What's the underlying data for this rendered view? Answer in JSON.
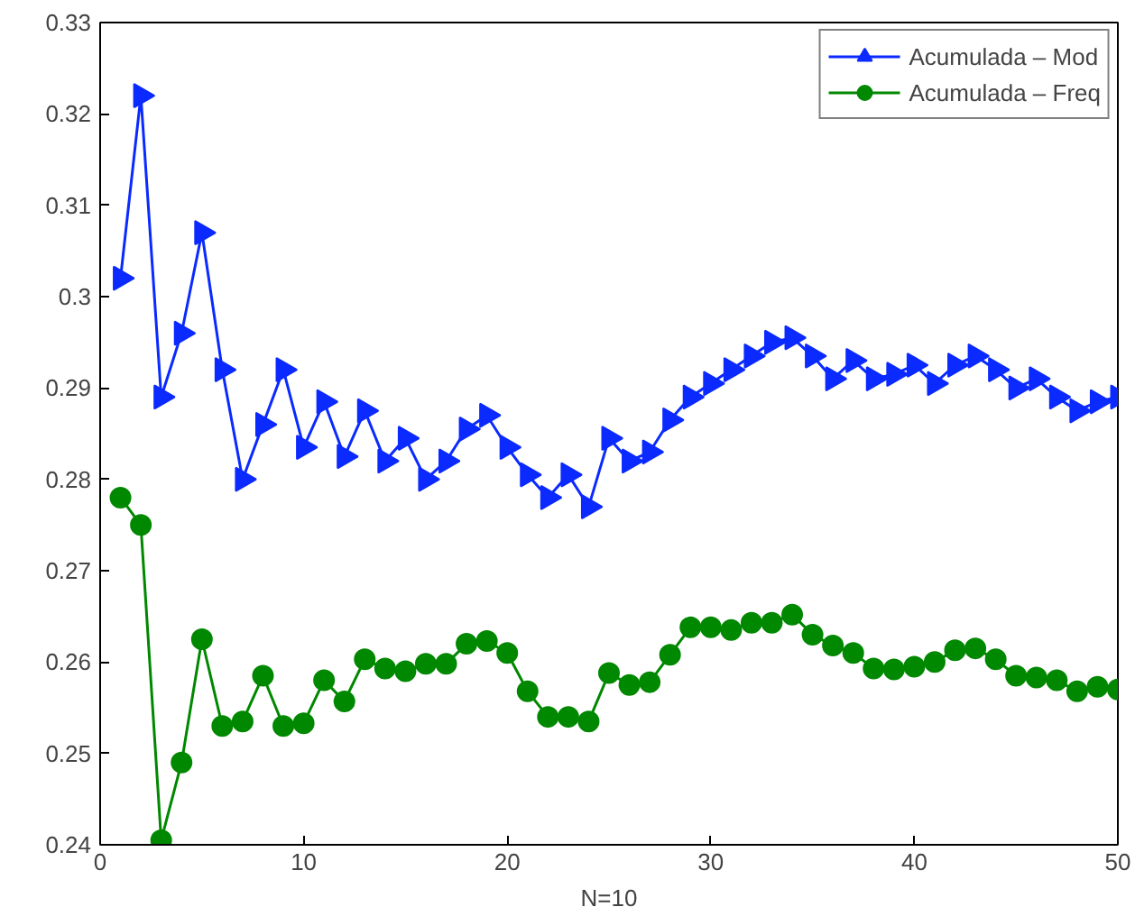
{
  "chart_data": {
    "type": "line",
    "xlabel": "N=10",
    "x": [
      1,
      2,
      3,
      4,
      5,
      6,
      7,
      8,
      9,
      10,
      11,
      12,
      13,
      14,
      15,
      16,
      17,
      18,
      19,
      20,
      21,
      22,
      23,
      24,
      25,
      26,
      27,
      28,
      29,
      30,
      31,
      32,
      33,
      34,
      35,
      36,
      37,
      38,
      39,
      40,
      41,
      42,
      43,
      44,
      45,
      46,
      47,
      48,
      49,
      50
    ],
    "series": [
      {
        "name": "Acumulada – Mod",
        "color": "#0a2aff",
        "marker": "triangle",
        "values": [
          0.302,
          0.322,
          0.289,
          0.296,
          0.307,
          0.292,
          0.28,
          0.286,
          0.292,
          0.2835,
          0.2885,
          0.2825,
          0.2875,
          0.282,
          0.2845,
          0.28,
          0.282,
          0.2855,
          0.287,
          0.2835,
          0.2805,
          0.278,
          0.2805,
          0.277,
          0.2845,
          0.282,
          0.283,
          0.2865,
          0.289,
          0.2905,
          0.292,
          0.2935,
          0.295,
          0.2955,
          0.2935,
          0.291,
          0.293,
          0.291,
          0.2915,
          0.2925,
          0.2905,
          0.2925,
          0.2935,
          0.292,
          0.29,
          0.291,
          0.289,
          0.2875,
          0.2885,
          0.289
        ]
      },
      {
        "name": "Acumulada – Freq",
        "color": "#008800",
        "marker": "circle",
        "values": [
          0.278,
          0.275,
          0.2405,
          0.249,
          0.2625,
          0.253,
          0.2535,
          0.2585,
          0.253,
          0.2533,
          0.258,
          0.2557,
          0.2603,
          0.2593,
          0.259,
          0.2598,
          0.2598,
          0.262,
          0.2623,
          0.261,
          0.2568,
          0.254,
          0.254,
          0.2535,
          0.2588,
          0.2575,
          0.2578,
          0.2608,
          0.2638,
          0.2638,
          0.2635,
          0.2643,
          0.2643,
          0.2652,
          0.263,
          0.2618,
          0.261,
          0.2593,
          0.2592,
          0.2595,
          0.26,
          0.2613,
          0.2615,
          0.2603,
          0.2585,
          0.2583,
          0.258,
          0.2568,
          0.2573,
          0.257
        ]
      }
    ],
    "xlim": [
      0,
      50
    ],
    "xticks": [
      0,
      10,
      20,
      30,
      40,
      50
    ],
    "ylim": [
      0.24,
      0.33
    ],
    "yticks": [
      0.24,
      0.25,
      0.26,
      0.27,
      0.28,
      0.29,
      0.3,
      0.31,
      0.32,
      0.33
    ],
    "grid": false,
    "legend": "top right",
    "line_style": "solid"
  }
}
